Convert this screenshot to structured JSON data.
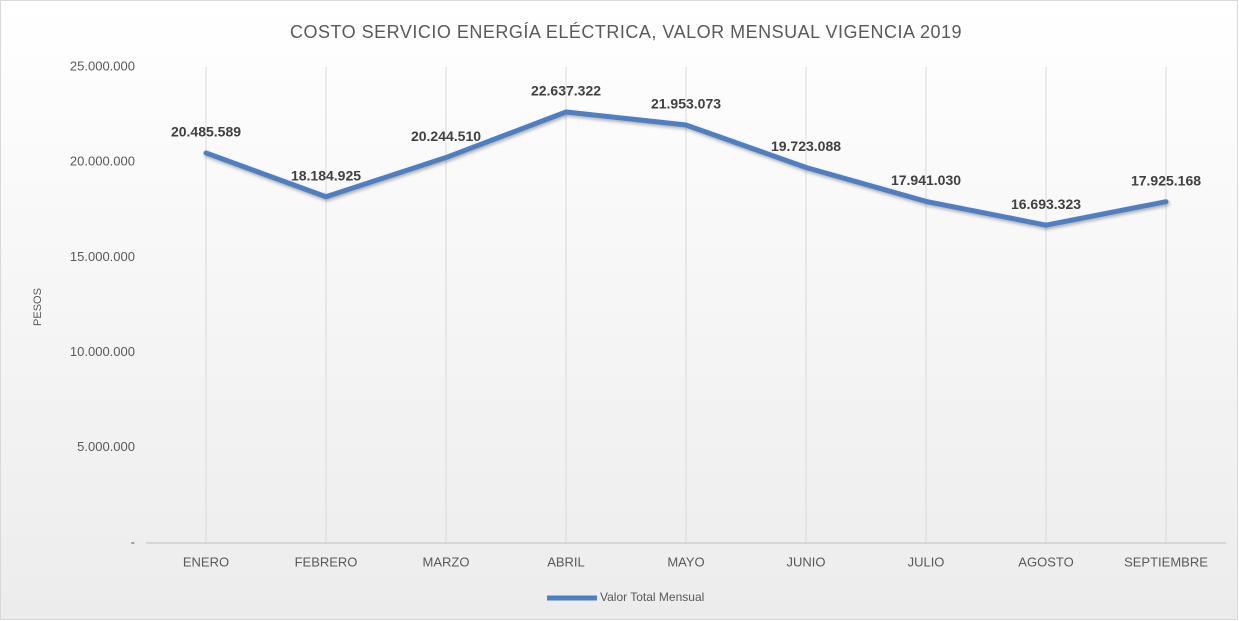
{
  "chart_data": {
    "type": "line",
    "title": "COSTO SERVICIO ENERGÍA ELÉCTRICA, VALOR MENSUAL VIGENCIA 2019",
    "y_label": "PESOS",
    "categories": [
      "ENERO",
      "FEBRERO",
      "MARZO",
      "ABRIL",
      "MAYO",
      "JUNIO",
      "JULIO",
      "AGOSTO",
      "SEPTIEMBRE"
    ],
    "series": [
      {
        "name": "Valor Total Mensual",
        "color": "#4f7fc0",
        "values": [
          20485589,
          18184925,
          20244510,
          22637322,
          21953073,
          19723088,
          17941030,
          16693323,
          17925168
        ],
        "value_labels": [
          "20.485.589",
          "18.184.925",
          "20.244.510",
          "22.637.322",
          "21.953.073",
          "19.723.088",
          "17.941.030",
          "16.693.323",
          "17.925.168"
        ]
      }
    ],
    "ylim": [
      0,
      25000000
    ],
    "yticks": [
      {
        "value": 0,
        "label": "-"
      },
      {
        "value": 5000000,
        "label": "5.000.000"
      },
      {
        "value": 10000000,
        "label": "10.000.000"
      },
      {
        "value": 15000000,
        "label": "15.000.000"
      },
      {
        "value": 20000000,
        "label": "20.000.000"
      },
      {
        "value": 25000000,
        "label": "25.000.000"
      }
    ],
    "grid": true,
    "legend": "bottom"
  }
}
